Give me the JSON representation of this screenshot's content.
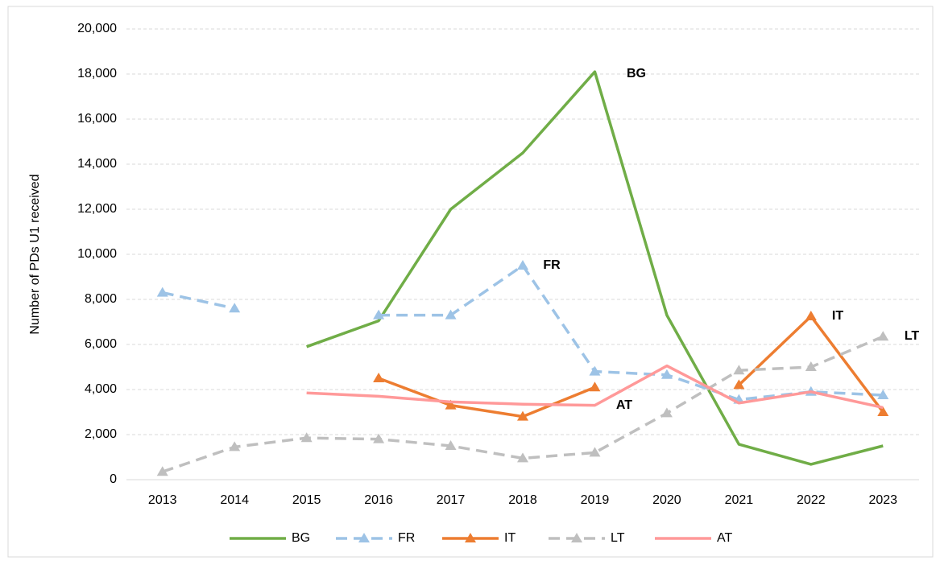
{
  "chart_data": {
    "type": "line",
    "y_label": "Number of PDs U1 received",
    "categories": [
      "2013",
      "2014",
      "2015",
      "2016",
      "2017",
      "2018",
      "2019",
      "2020",
      "2021",
      "2022",
      "2023"
    ],
    "series": [
      {
        "name": "BG",
        "color": "#70ad47",
        "dashed": false,
        "marker": "none",
        "values": [
          null,
          null,
          5900,
          7050,
          12000,
          14500,
          18100,
          7300,
          1570,
          680,
          1500
        ]
      },
      {
        "name": "FR",
        "color": "#9dc3e6",
        "dashed": true,
        "marker": "triangle",
        "values": [
          8300,
          7600,
          null,
          7300,
          7300,
          9500,
          4800,
          4650,
          3550,
          3900,
          3750
        ]
      },
      {
        "name": "IT",
        "color": "#ed7d31",
        "dashed": false,
        "marker": "triangle",
        "values": [
          null,
          null,
          null,
          4500,
          3300,
          2800,
          4100,
          null,
          4200,
          7250,
          3000
        ]
      },
      {
        "name": "LT",
        "color": "#bfbfbf",
        "dashed": true,
        "marker": "triangle",
        "values": [
          350,
          1450,
          1850,
          1800,
          1500,
          950,
          1200,
          2950,
          4850,
          5000,
          6350
        ]
      },
      {
        "name": "AT",
        "color": "#ff9999",
        "dashed": false,
        "marker": "none",
        "values": [
          null,
          null,
          3850,
          3700,
          3450,
          3350,
          3300,
          5050,
          3400,
          3900,
          3200
        ]
      }
    ],
    "annotations": [
      "BG",
      "FR",
      "IT",
      "LT",
      "AT"
    ],
    "ylim": [
      0,
      20000
    ],
    "yticks": [
      0,
      {
        "value": 2000,
        "label": "2,000"
      },
      {
        "value": 4000,
        "label": "4,000"
      },
      {
        "value": 6000,
        "label": "6,000"
      },
      {
        "value": 8000,
        "label": "8,000"
      },
      {
        "value": 10000,
        "label": "10,000"
      },
      {
        "value": 12000,
        "label": "12,000"
      },
      {
        "value": 14000,
        "label": "14,000"
      },
      {
        "value": 16000,
        "label": "16,000"
      },
      {
        "value": 18000,
        "label": "18,000"
      },
      {
        "value": 20000,
        "label": "20,000"
      }
    ],
    "grid": true,
    "legend": "bottom"
  }
}
